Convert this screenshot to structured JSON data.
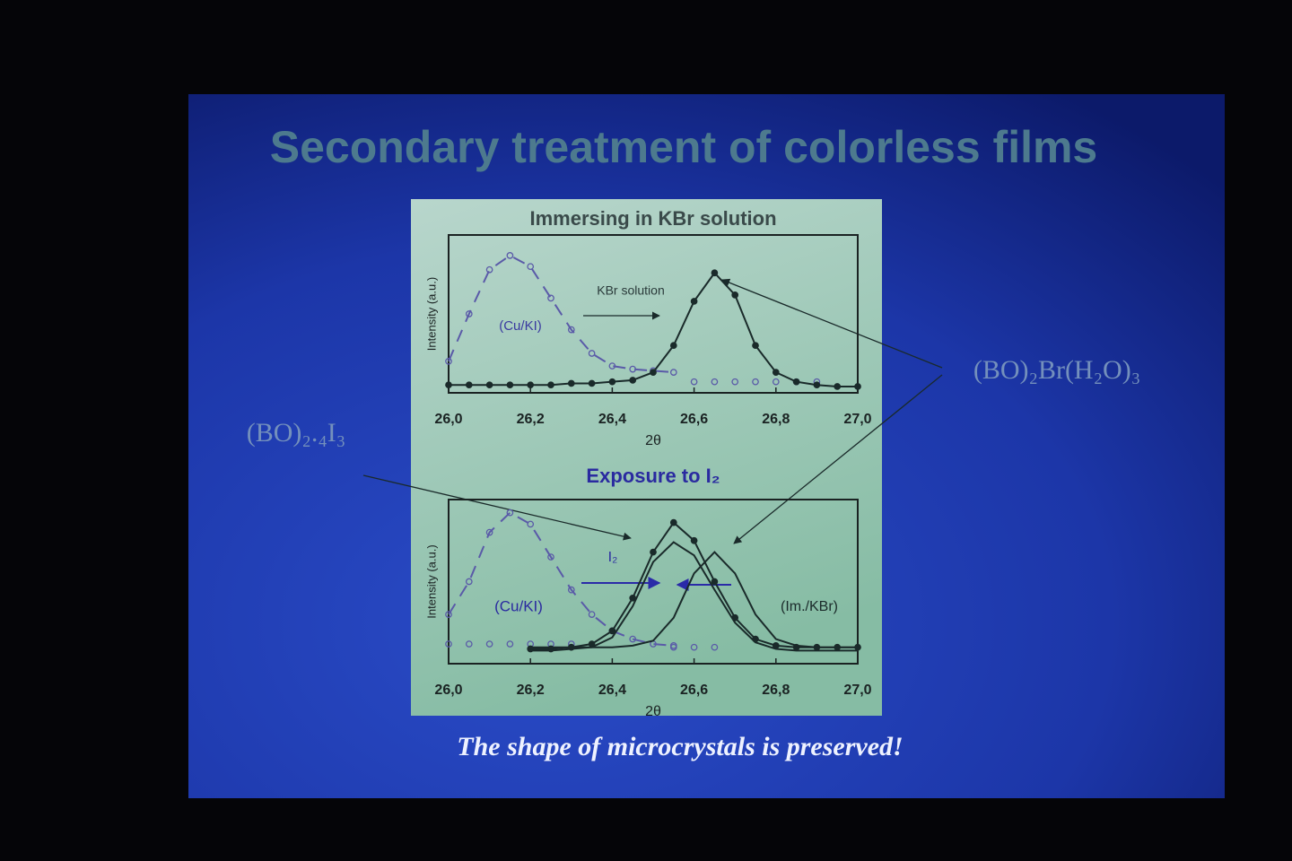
{
  "slide": {
    "title": "Secondary treatment of colorless films",
    "left_label": "(BO)₂.₄I₃",
    "right_label": "(BO)₂Br(H₂O)₃",
    "caption": "The shape of  microcrystals is preserved!"
  },
  "chart_data": [
    {
      "type": "line",
      "title": "Immersing in KBr solution",
      "xlabel": "2θ",
      "ylabel": "Intensity (a.u.)",
      "xlim": [
        26.0,
        27.0
      ],
      "ylim": [
        0,
        1
      ],
      "xticks": [
        {
          "value": 26.0,
          "label": "26,0"
        },
        {
          "value": 26.2,
          "label": "26,2"
        },
        {
          "value": 26.4,
          "label": "26,4"
        },
        {
          "value": 26.6,
          "label": "26,6"
        },
        {
          "value": 26.8,
          "label": "26,8"
        },
        {
          "value": 27.0,
          "label": "27,0"
        }
      ],
      "annotations": [
        "KBr solution",
        "(Cu/KI)"
      ],
      "series": [
        {
          "color": "#5a5aa8",
          "marker": "open",
          "line": "dashed",
          "x": [
            26.0,
            26.05,
            26.1,
            26.15,
            26.2,
            26.25,
            26.3,
            26.35,
            26.4,
            26.45,
            26.5,
            26.55
          ],
          "values": [
            0.2,
            0.5,
            0.78,
            0.87,
            0.8,
            0.6,
            0.4,
            0.25,
            0.17,
            0.15,
            0.14,
            0.13
          ]
        },
        {
          "color": "#5a5aa8",
          "marker": "open",
          "line": "none",
          "x": [
            26.6,
            26.65,
            26.7,
            26.75,
            26.8,
            26.85,
            26.9
          ],
          "values": [
            0.07,
            0.07,
            0.07,
            0.07,
            0.07,
            0.07,
            0.07
          ]
        },
        {
          "color": "#1a2a2a",
          "marker": "filled",
          "line": "solid",
          "x": [
            26.0,
            26.05,
            26.1,
            26.15,
            26.2,
            26.25,
            26.3,
            26.35,
            26.4,
            26.45,
            26.5,
            26.55,
            26.6,
            26.65,
            26.7,
            26.75,
            26.8,
            26.85,
            26.9,
            26.95,
            27.0
          ],
          "values": [
            0.05,
            0.05,
            0.05,
            0.05,
            0.05,
            0.05,
            0.06,
            0.06,
            0.07,
            0.08,
            0.13,
            0.3,
            0.58,
            0.76,
            0.62,
            0.3,
            0.13,
            0.07,
            0.05,
            0.04,
            0.04
          ]
        }
      ]
    },
    {
      "type": "line",
      "title": "Exposure to I₂",
      "xlabel": "2θ",
      "ylabel": "Intensity (a.u.)",
      "xlim": [
        26.0,
        27.0
      ],
      "ylim": [
        0,
        1
      ],
      "xticks": [
        {
          "value": 26.0,
          "label": "26,0"
        },
        {
          "value": 26.2,
          "label": "26,2"
        },
        {
          "value": 26.4,
          "label": "26,4"
        },
        {
          "value": 26.6,
          "label": "26,6"
        },
        {
          "value": 26.8,
          "label": "26,8"
        },
        {
          "value": 27.0,
          "label": "27,0"
        }
      ],
      "annotations": [
        "I₂",
        "(Cu/KI)",
        "(Im./KBr)"
      ],
      "series": [
        {
          "color": "#5a5aa8",
          "marker": "open",
          "line": "dashed",
          "x": [
            26.0,
            26.05,
            26.1,
            26.15,
            26.2,
            26.25,
            26.3,
            26.35,
            26.4,
            26.45,
            26.5,
            26.55
          ],
          "values": [
            0.3,
            0.5,
            0.8,
            0.92,
            0.85,
            0.65,
            0.45,
            0.3,
            0.2,
            0.15,
            0.12,
            0.11
          ]
        },
        {
          "color": "#5a5aa8",
          "marker": "open",
          "line": "none",
          "x": [
            26.0,
            26.05,
            26.1,
            26.15,
            26.2,
            26.25,
            26.3,
            26.55,
            26.6,
            26.65
          ],
          "values": [
            0.12,
            0.12,
            0.12,
            0.12,
            0.12,
            0.12,
            0.12,
            0.1,
            0.1,
            0.1
          ]
        },
        {
          "color": "#1a2a2a",
          "marker": "filled",
          "line": "solid",
          "x": [
            26.2,
            26.25,
            26.3,
            26.35,
            26.4,
            26.45,
            26.5,
            26.55,
            26.6,
            26.65,
            26.7,
            26.75,
            26.8,
            26.85,
            26.9,
            26.95,
            27.0
          ],
          "values": [
            0.09,
            0.09,
            0.1,
            0.12,
            0.2,
            0.4,
            0.68,
            0.86,
            0.75,
            0.5,
            0.28,
            0.15,
            0.11,
            0.1,
            0.1,
            0.1,
            0.1
          ]
        },
        {
          "color": "#1a2a2a",
          "marker": "none",
          "line": "solid",
          "x": [
            26.2,
            26.25,
            26.3,
            26.35,
            26.4,
            26.45,
            26.5,
            26.55,
            26.6,
            26.65,
            26.7,
            26.75,
            26.8,
            26.85,
            26.9,
            26.95,
            27.0
          ],
          "values": [
            0.08,
            0.08,
            0.09,
            0.1,
            0.16,
            0.35,
            0.62,
            0.74,
            0.66,
            0.45,
            0.25,
            0.13,
            0.09,
            0.08,
            0.08,
            0.08,
            0.08
          ]
        },
        {
          "color": "#1a2a2a",
          "marker": "none",
          "line": "solid",
          "x": [
            26.2,
            26.25,
            26.3,
            26.35,
            26.4,
            26.45,
            26.5,
            26.55,
            26.6,
            26.65,
            26.7,
            26.75,
            26.8,
            26.85,
            26.9,
            26.95,
            27.0
          ],
          "values": [
            0.1,
            0.1,
            0.1,
            0.1,
            0.1,
            0.11,
            0.14,
            0.28,
            0.55,
            0.68,
            0.55,
            0.3,
            0.15,
            0.11,
            0.1,
            0.1,
            0.1
          ]
        }
      ]
    }
  ]
}
